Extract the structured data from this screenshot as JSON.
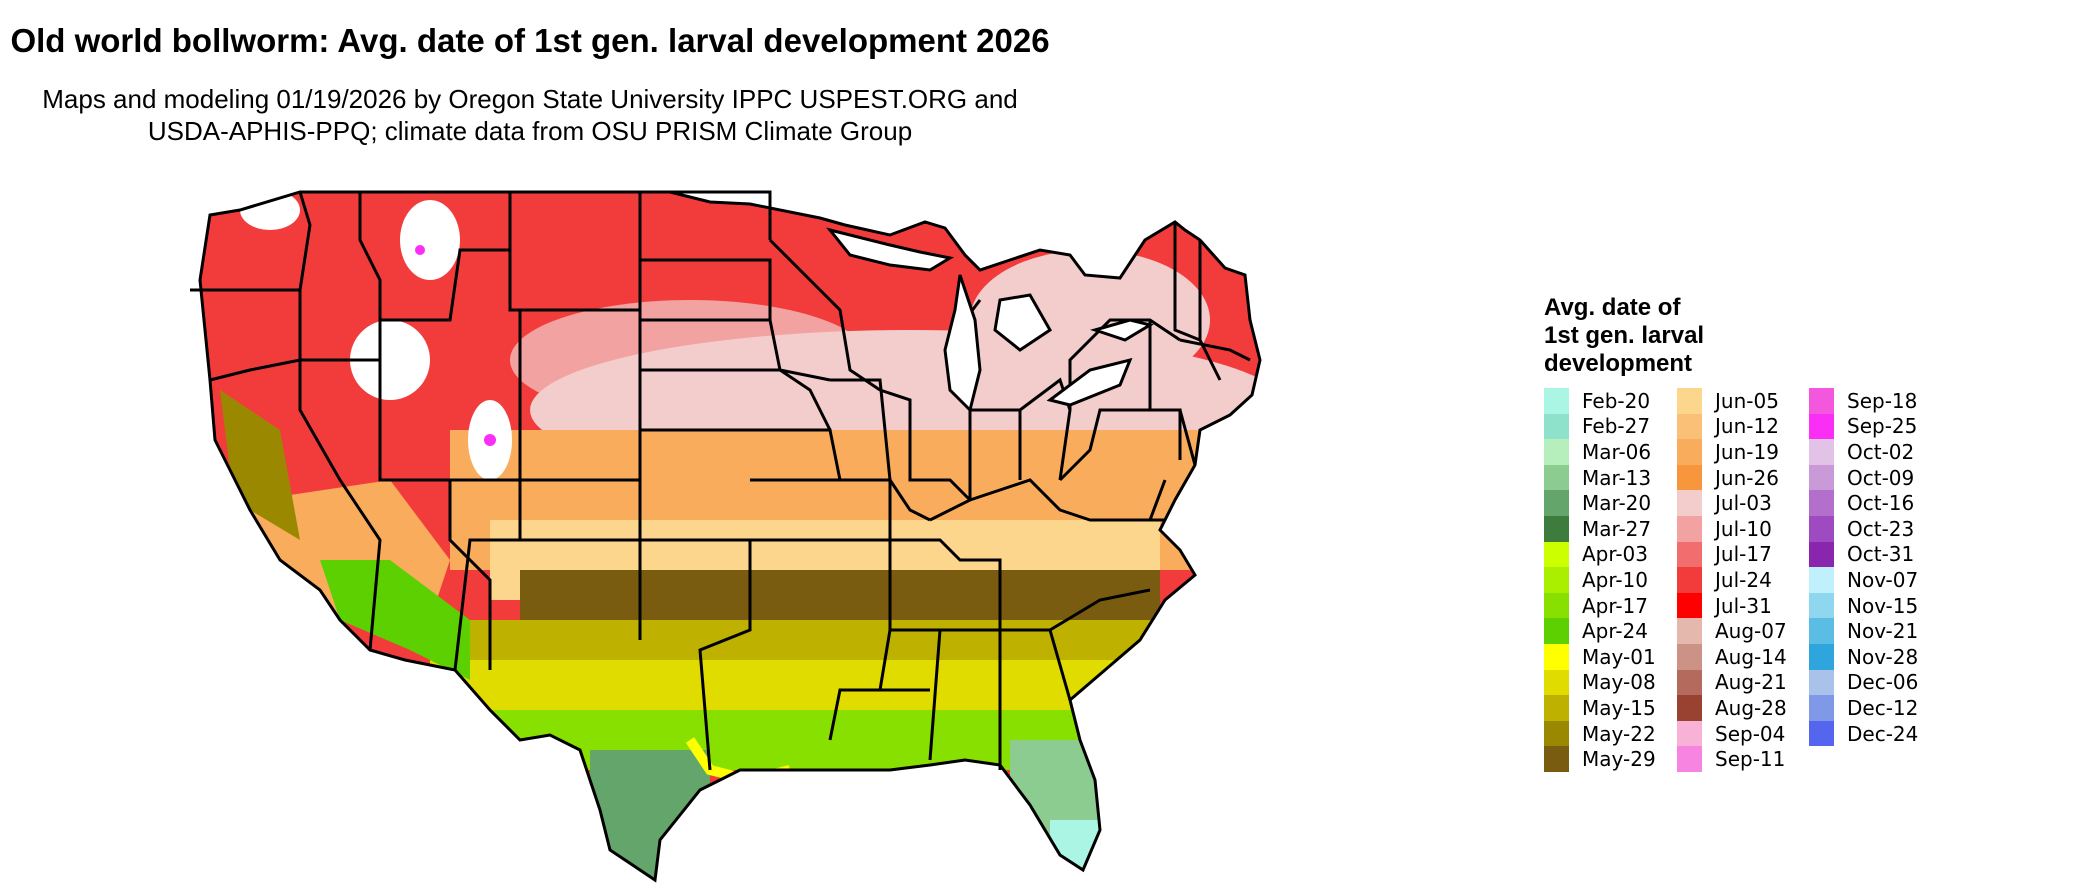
{
  "title": "Old world bollworm: Avg. date of 1st gen. larval development 2026",
  "subtitle_line1": "Maps and modeling 01/19/2026 by Oregon State University IPPC USPEST.ORG and",
  "subtitle_line2": "USDA-APHIS-PPQ; climate data from OSU PRISM Climate Group",
  "legend": {
    "title_lines": [
      "Avg. date of",
      "1st gen. larval",
      "development"
    ],
    "columns": [
      [
        {
          "label": "Feb-20",
          "color": "#aaf5e3"
        },
        {
          "label": "Feb-27",
          "color": "#8ee2cc"
        },
        {
          "label": "Mar-06",
          "color": "#b6eebc"
        },
        {
          "label": "Mar-13",
          "color": "#8ccc91"
        },
        {
          "label": "Mar-20",
          "color": "#63a56a"
        },
        {
          "label": "Mar-27",
          "color": "#3e7c3e"
        },
        {
          "label": "Apr-03",
          "color": "#ccff00"
        },
        {
          "label": "Apr-10",
          "color": "#aaee00"
        },
        {
          "label": "Apr-17",
          "color": "#88e000"
        },
        {
          "label": "Apr-24",
          "color": "#5cd000"
        },
        {
          "label": "May-01",
          "color": "#ffff00"
        },
        {
          "label": "May-08",
          "color": "#e0dc00"
        },
        {
          "label": "May-15",
          "color": "#bfb100"
        },
        {
          "label": "May-22",
          "color": "#9a8800"
        },
        {
          "label": "May-29",
          "color": "#7a5c10"
        }
      ],
      [
        {
          "label": "Jun-05",
          "color": "#fcd68c"
        },
        {
          "label": "Jun-12",
          "color": "#fbc078"
        },
        {
          "label": "Jun-19",
          "color": "#f8ac5c"
        },
        {
          "label": "Jun-26",
          "color": "#f7963c"
        },
        {
          "label": "Jul-03",
          "color": "#f3cccc"
        },
        {
          "label": "Jul-10",
          "color": "#f3a2a2"
        },
        {
          "label": "Jul-17",
          "color": "#f26e6e"
        },
        {
          "label": "Jul-24",
          "color": "#f23c3c"
        },
        {
          "label": "Jul-31",
          "color": "#ff0000"
        },
        {
          "label": "Aug-07",
          "color": "#e4b8ad"
        },
        {
          "label": "Aug-14",
          "color": "#cc9286"
        },
        {
          "label": "Aug-21",
          "color": "#b56a5e"
        },
        {
          "label": "Aug-28",
          "color": "#9a4232"
        },
        {
          "label": "Sep-04",
          "color": "#f7b2d6"
        },
        {
          "label": "Sep-11",
          "color": "#f784e0"
        }
      ],
      [
        {
          "label": "Sep-18",
          "color": "#f257dd"
        },
        {
          "label": "Sep-25",
          "color": "#fb2ef6"
        },
        {
          "label": "Oct-02",
          "color": "#e2c2e6"
        },
        {
          "label": "Oct-09",
          "color": "#ca99d8"
        },
        {
          "label": "Oct-16",
          "color": "#b26fcc"
        },
        {
          "label": "Oct-23",
          "color": "#9e4ac0"
        },
        {
          "label": "Oct-31",
          "color": "#8a25ae"
        },
        {
          "label": "Nov-07",
          "color": "#bff0fc"
        },
        {
          "label": "Nov-15",
          "color": "#8fd7ef"
        },
        {
          "label": "Nov-21",
          "color": "#5bbde4"
        },
        {
          "label": "Nov-28",
          "color": "#2ea5dc"
        },
        {
          "label": "Dec-06",
          "color": "#a9c2ea"
        },
        {
          "label": "Dec-12",
          "color": "#7f98e8"
        },
        {
          "label": "Dec-24",
          "color": "#5566ee"
        }
      ]
    ]
  },
  "map_colors": {
    "south_green": "#8ccc91",
    "gulf_lime": "#88e000",
    "south_yellow": "#e0dc00",
    "south_olive": "#bfb100",
    "mid_brown": "#7a5c10",
    "mid_orange": "#f8ac5c",
    "mid_peach": "#fcd68c",
    "north_pink": "#f3cccc",
    "north_red": "#f23c3c",
    "mountain_white": "#ffffff",
    "mountain_magenta": "#fb2ef6",
    "florida_tip": "#aaf5e3"
  }
}
